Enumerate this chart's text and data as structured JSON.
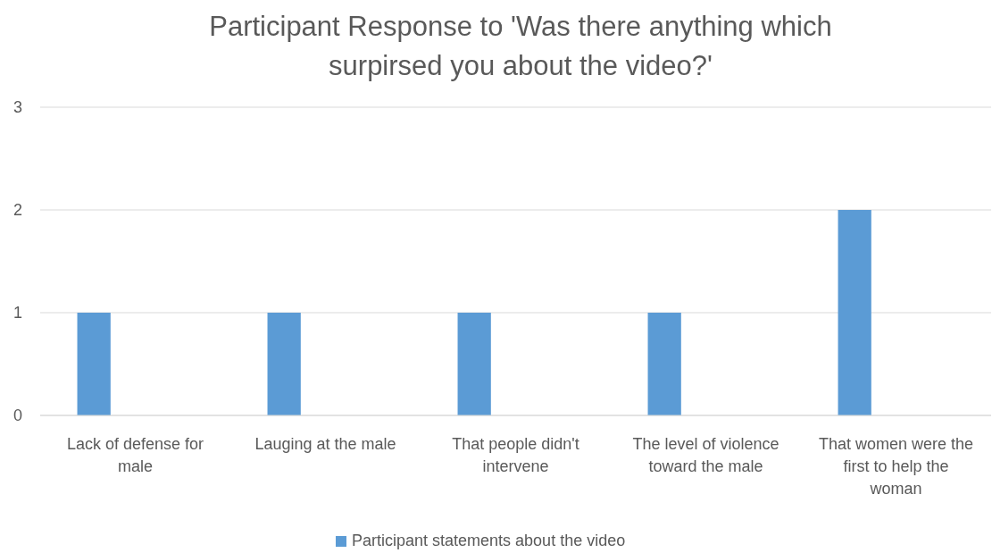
{
  "chart_data": {
    "type": "bar",
    "title": "Participant Response to 'Was there anything which surpirsed you about the video?'",
    "categories": [
      "Lack of defense for male",
      "Lauging at the male",
      "That people didn't intervene",
      "The level of violence toward the male",
      "That women were the first to help the woman"
    ],
    "series": [
      {
        "name": "Participant statements about the video",
        "color": "#5b9bd5",
        "values": [
          1,
          1,
          1,
          1,
          2
        ]
      }
    ],
    "ylim": [
      0,
      3
    ],
    "yticks": [
      0,
      1,
      2,
      3
    ],
    "grid": "y",
    "legend": "bottom"
  }
}
